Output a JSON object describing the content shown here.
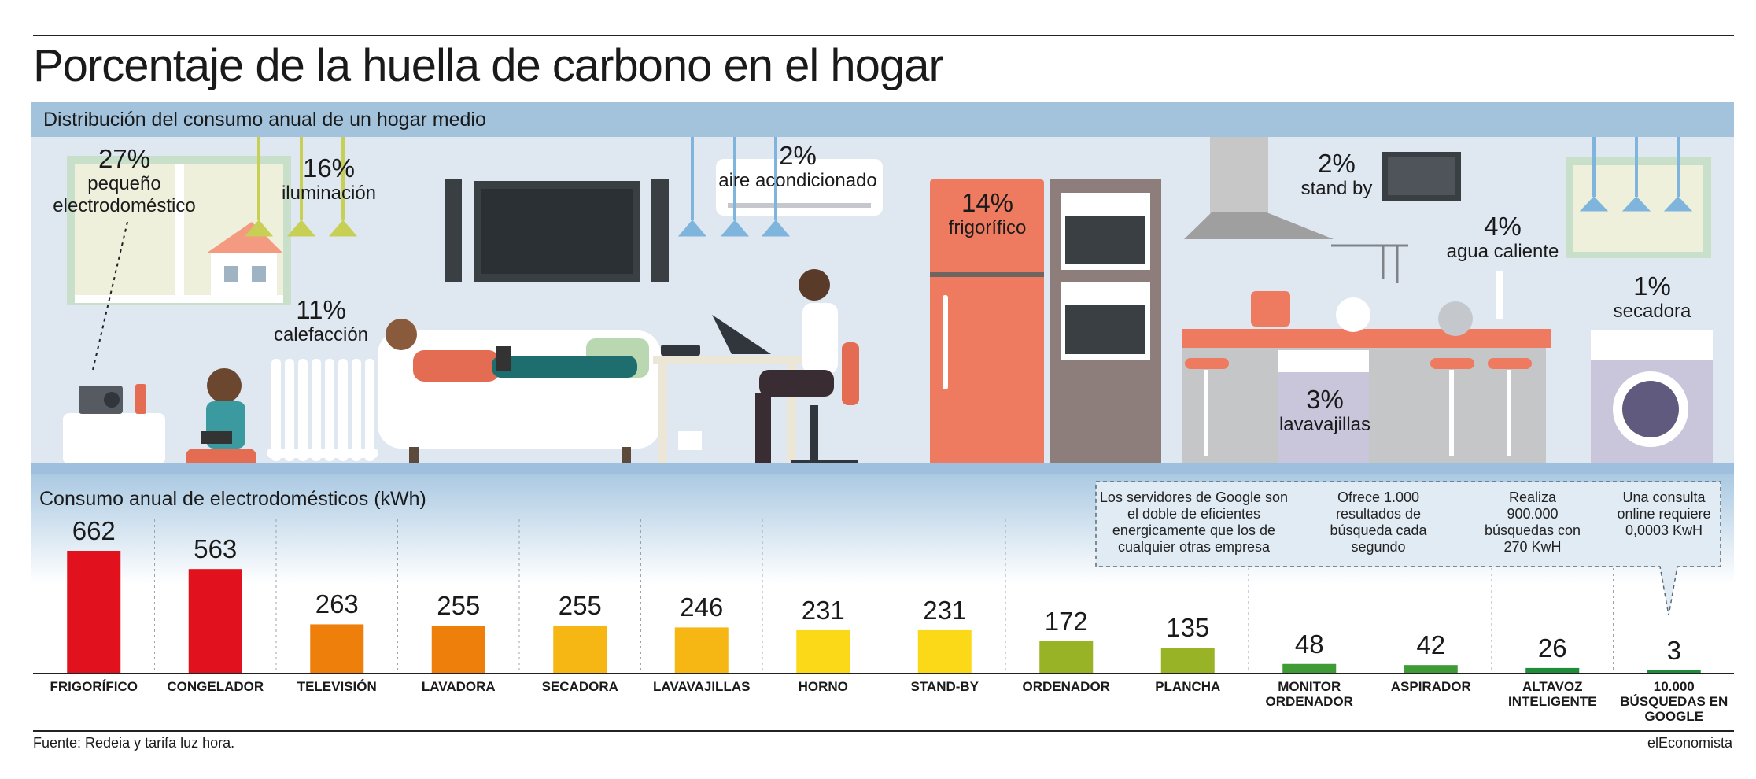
{
  "title": "Porcentaje de la huella de carbono en el hogar",
  "subtitle": "Distribución del consumo anual de un hogar medio",
  "room_labels": [
    {
      "pct": "27%",
      "lines": [
        "pequeño",
        "electrodoméstico"
      ]
    },
    {
      "pct": "16%",
      "lines": [
        "iluminación"
      ]
    },
    {
      "pct": "11%",
      "lines": [
        "calefacción"
      ]
    },
    {
      "pct": "2%",
      "lines": [
        "aire acondicionado"
      ]
    },
    {
      "pct": "14%",
      "lines": [
        "frigorífico"
      ]
    },
    {
      "pct": "2%",
      "lines": [
        "stand by"
      ]
    },
    {
      "pct": "4%",
      "lines": [
        "agua caliente"
      ]
    },
    {
      "pct": "3%",
      "lines": [
        "lavavajillas"
      ]
    },
    {
      "pct": "1%",
      "lines": [
        "secadora"
      ]
    }
  ],
  "notes": [
    "Los servidores de Google son el doble de eficientes energicamente que los de cualquier otras empresa",
    "Ofrece 1.000 resultados de búsqueda cada segundo",
    "Realiza 900.000 búsquedas con 270 KwH",
    "Una consulta online requiere 0,0003 KwH"
  ],
  "chart_data": {
    "type": "bar",
    "title": "Consumo anual de electrodomésticos (kWh)",
    "categories": [
      "FRIGORÍFICO",
      "CONGELADOR",
      "TELEVISIÓN",
      "LAVADORA",
      "SECADORA",
      "LAVAVAJILLAS",
      "HORNO",
      "STAND-BY",
      "ORDENADOR",
      "PLANCHA",
      "MONITOR ORDENADOR",
      "ASPIRADOR",
      "ALTAVOZ INTELIGENTE",
      "10.000 BÚSQUEDAS EN GOOGLE"
    ],
    "values": [
      662,
      563,
      263,
      255,
      255,
      246,
      231,
      231,
      172,
      135,
      48,
      42,
      26,
      3
    ],
    "colors": [
      "#e1121d",
      "#e1121d",
      "#ee7f0b",
      "#ee7f0b",
      "#f6b715",
      "#f6b715",
      "#fbd919",
      "#fbd919",
      "#98b426",
      "#98b426",
      "#3f9b35",
      "#3f9b35",
      "#1f8c3a",
      "#1f8c3a"
    ],
    "ylim": [
      0,
      700
    ]
  },
  "source": "Fuente: Redeia y tarifa luz hora.",
  "brand": "elEconomista"
}
